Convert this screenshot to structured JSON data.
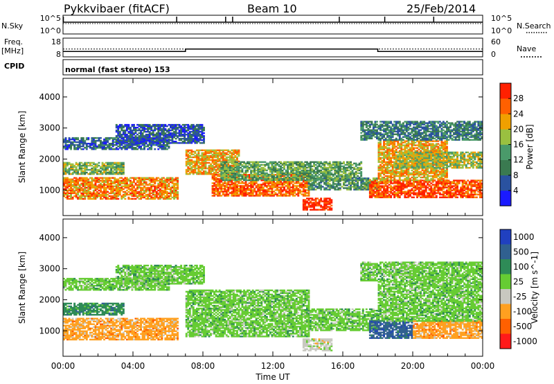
{
  "header": {
    "title": "Pykkvibaer (fitACF)",
    "beam": "Beam 10",
    "date": "25/Feb/2014"
  },
  "strip_panels": {
    "nsky": {
      "left_label": "N.Sky",
      "right_label": "N.Search",
      "left_ticks": [
        "10^5",
        "10^0"
      ],
      "right_ticks": [
        "10^5",
        "10^0"
      ]
    },
    "freq": {
      "left_label_line1": "Freq.",
      "left_label_line2": "[MHz]",
      "left_ticks": [
        "18",
        "8"
      ],
      "right_label": "Nave",
      "right_ticks": [
        "60",
        "0"
      ],
      "freq_mhz": [
        [
          0,
          10.9
        ],
        [
          7.0,
          10.9
        ],
        [
          7.0,
          12.2
        ],
        [
          18.0,
          12.2
        ],
        [
          18.0,
          10.9
        ],
        [
          24,
          10.9
        ]
      ],
      "nave": [
        [
          0,
          25
        ],
        [
          24,
          25
        ]
      ]
    },
    "cpid": {
      "label": "CPID",
      "text": "normal (fast stereo) 153"
    }
  },
  "chart_data": [
    {
      "type": "heatmap",
      "name": "power",
      "ylabel": "Slant Range [km]",
      "ylim": [
        180,
        4600
      ],
      "yticks": [
        1000,
        2000,
        3000,
        4000
      ],
      "xlim": [
        0,
        24
      ],
      "colorbar": {
        "label": "Power [dB]",
        "range": [
          0,
          32
        ],
        "ticks": [
          4,
          8,
          12,
          16,
          20,
          24,
          28
        ],
        "colors": [
          "#1a1aff",
          "#2a52a0",
          "#3a7a50",
          "#4a9a6a",
          "#9ac040",
          "#f0a000",
          "#ff6000",
          "#ff2000"
        ]
      },
      "bands": [
        {
          "t0": 0.0,
          "t1": 6.5,
          "r0": 700,
          "r1": 1400,
          "val": 24
        },
        {
          "t0": 0.0,
          "t1": 3.5,
          "r0": 1500,
          "r1": 1900,
          "val": 16
        },
        {
          "t0": 0.0,
          "t1": 6.0,
          "r0": 2300,
          "r1": 2700,
          "val": 8
        },
        {
          "t0": 3.0,
          "t1": 8.0,
          "r0": 2500,
          "r1": 3100,
          "val": 6
        },
        {
          "t0": 7.0,
          "t1": 10.0,
          "r0": 1500,
          "r1": 2300,
          "val": 22
        },
        {
          "t0": 8.5,
          "t1": 14.0,
          "r0": 800,
          "r1": 1500,
          "val": 26
        },
        {
          "t0": 9.0,
          "t1": 17.0,
          "r0": 1300,
          "r1": 1900,
          "val": 14
        },
        {
          "t0": 13.7,
          "t1": 15.3,
          "r0": 350,
          "r1": 750,
          "val": 30
        },
        {
          "t0": 14.0,
          "t1": 18.0,
          "r0": 1000,
          "r1": 1400,
          "val": 12
        },
        {
          "t0": 17.5,
          "t1": 24.0,
          "r0": 750,
          "r1": 1300,
          "val": 28
        },
        {
          "t0": 18.0,
          "t1": 22.0,
          "r0": 1300,
          "r1": 2600,
          "val": 22
        },
        {
          "t0": 19.0,
          "t1": 24.0,
          "r0": 1700,
          "r1": 2200,
          "val": 18
        },
        {
          "t0": 17.0,
          "t1": 24.0,
          "r0": 2600,
          "r1": 3200,
          "val": 10
        }
      ]
    },
    {
      "type": "heatmap",
      "name": "velocity",
      "ylabel": "Slant Range [km]",
      "ylim": [
        180,
        4600
      ],
      "yticks": [
        1000,
        2000,
        3000,
        4000
      ],
      "xlim": [
        0,
        24
      ],
      "xticks": [
        "00:00",
        "04:00",
        "08:00",
        "12:00",
        "16:00",
        "20:00",
        "00:00"
      ],
      "xlabel": "Time UT",
      "colorbar": {
        "label": "Velocity [m s^-1]",
        "ticks": [
          "1000",
          "500",
          "100",
          "25",
          "-25",
          "-100",
          "-500",
          "-1000"
        ],
        "colors": [
          "#2040c0",
          "#306090",
          "#2e8b57",
          "#66cc33",
          "#c8c8c0",
          "#ffa020",
          "#ff6000",
          "#ff1a1a"
        ]
      },
      "bands": [
        {
          "t0": 0.0,
          "t1": 6.5,
          "r0": 700,
          "r1": 1400,
          "val": "-100"
        },
        {
          "t0": 0.0,
          "t1": 3.5,
          "r0": 1500,
          "r1": 1900,
          "val": "100"
        },
        {
          "t0": 0.0,
          "t1": 6.0,
          "r0": 2300,
          "r1": 2700,
          "val": "25"
        },
        {
          "t0": 3.0,
          "t1": 8.0,
          "r0": 2500,
          "r1": 3100,
          "val": "25"
        },
        {
          "t0": 7.0,
          "t1": 14.0,
          "r0": 800,
          "r1": 2300,
          "val": "25"
        },
        {
          "t0": 13.7,
          "t1": 15.3,
          "r0": 350,
          "r1": 750,
          "val": "-25"
        },
        {
          "t0": 14.0,
          "t1": 18.0,
          "r0": 1000,
          "r1": 1700,
          "val": "25"
        },
        {
          "t0": 17.5,
          "t1": 20.0,
          "r0": 750,
          "r1": 1300,
          "val": "500"
        },
        {
          "t0": 20.0,
          "t1": 24.0,
          "r0": 750,
          "r1": 1300,
          "val": "-100"
        },
        {
          "t0": 18.0,
          "t1": 24.0,
          "r0": 1300,
          "r1": 2600,
          "val": "25"
        },
        {
          "t0": 17.0,
          "t1": 24.0,
          "r0": 2600,
          "r1": 3200,
          "val": "25"
        }
      ]
    }
  ]
}
